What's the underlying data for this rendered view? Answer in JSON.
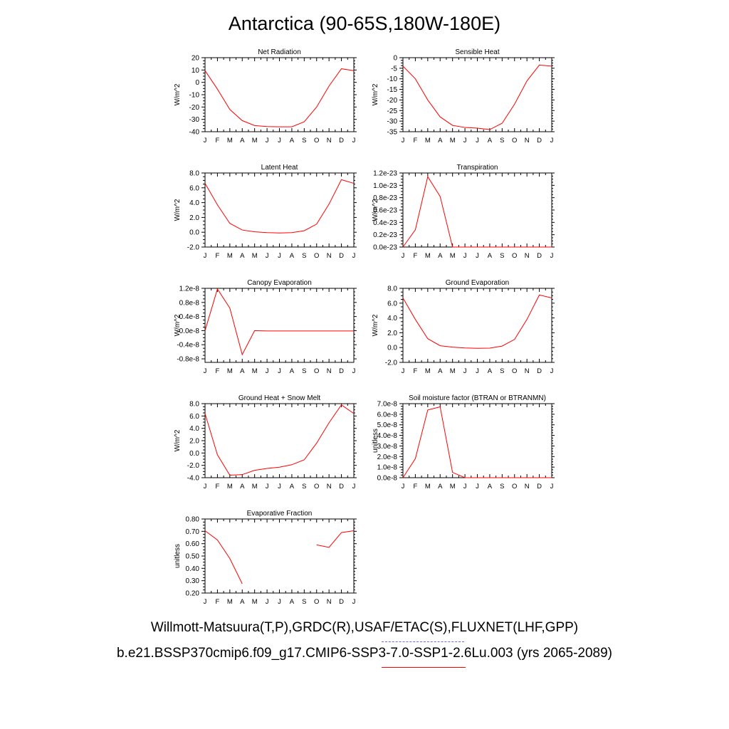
{
  "page": {
    "title": "Antarctica (90-65S,180W-180E)"
  },
  "legend": {
    "obs_label": "Willmott-Matsuura(T,P),GRDC(R),USAF/ETAC(S),FLUXNET(LHF,GPP)",
    "model_label": "b.e21.BSSP370cmip6.f09_g17.CMIP6-SSP3-7.0-SSP1-2.6Lu.003 (yrs 2065-2089)",
    "obs_color": "#6a6ae6",
    "model_color": "#ff0000"
  },
  "chart_data": [
    {
      "type": "line",
      "title": "Net Radiation",
      "ylabel": "W/m^2",
      "categories": [
        "J",
        "F",
        "M",
        "A",
        "M",
        "J",
        "J",
        "A",
        "S",
        "O",
        "N",
        "D",
        "J"
      ],
      "ylim": [
        -40,
        20
      ],
      "yticks": [
        20,
        10,
        0,
        -10,
        -20,
        -30,
        -40
      ],
      "ytick_labels": [
        "20",
        "10",
        "0",
        "-10",
        "-20",
        "-30",
        "-40"
      ],
      "series": [
        {
          "color": "#ff0000",
          "values": [
            9.5,
            -5.5,
            -22,
            -31,
            -35,
            -35.8,
            -36,
            -36,
            -32,
            -20,
            -3,
            11,
            9.5
          ]
        }
      ]
    },
    {
      "type": "line",
      "title": "Sensible Heat",
      "ylabel": "W/m^2",
      "categories": [
        "J",
        "F",
        "M",
        "A",
        "M",
        "J",
        "J",
        "A",
        "S",
        "O",
        "N",
        "D",
        "J"
      ],
      "ylim": [
        -35,
        0
      ],
      "yticks": [
        0,
        -5,
        -10,
        -15,
        -20,
        -25,
        -30,
        -35
      ],
      "ytick_labels": [
        "0",
        "-5",
        "-10",
        "-15",
        "-20",
        "-25",
        "-30",
        "-35"
      ],
      "series": [
        {
          "color": "#ff0000",
          "values": [
            -4,
            -10,
            -20,
            -28,
            -32,
            -33,
            -33.3,
            -34,
            -31,
            -22,
            -11,
            -3.5,
            -4
          ]
        }
      ]
    },
    {
      "type": "line",
      "title": "Latent Heat",
      "ylabel": "W/m^2",
      "categories": [
        "J",
        "F",
        "M",
        "A",
        "M",
        "J",
        "J",
        "A",
        "S",
        "O",
        "N",
        "D",
        "J"
      ],
      "ylim": [
        -2,
        8
      ],
      "yticks": [
        8,
        6,
        4,
        2,
        0,
        -2
      ],
      "ytick_labels": [
        "8.0",
        "6.0",
        "4.0",
        "2.0",
        "0.0",
        "-2.0"
      ],
      "series": [
        {
          "color": "#ff0000",
          "values": [
            6.6,
            3.7,
            1.2,
            0.3,
            0.05,
            -0.05,
            -0.1,
            -0.05,
            0.2,
            1.1,
            3.8,
            7.1,
            6.6
          ]
        }
      ]
    },
    {
      "type": "line",
      "title": "Transpiration",
      "ylabel": "W/m^2",
      "categories": [
        "J",
        "F",
        "M",
        "A",
        "M",
        "J",
        "J",
        "A",
        "S",
        "O",
        "N",
        "D",
        "J"
      ],
      "ylim": [
        0,
        1.2e-23
      ],
      "yticks": [
        1.2e-23,
        1e-23,
        8e-24,
        6e-24,
        4e-24,
        2e-24,
        0
      ],
      "ytick_labels": [
        "1.2e-23",
        "1.0e-23",
        "0.8e-23",
        "0.6e-23",
        "0.4e-23",
        "0.2e-23",
        "0.0e-23"
      ],
      "series": [
        {
          "color": "#ff0000",
          "values": [
            0,
            2.8e-24,
            1.14e-23,
            8.2e-24,
            0,
            0,
            0,
            0,
            0,
            0,
            0,
            0,
            0
          ]
        }
      ]
    },
    {
      "type": "line",
      "title": "Canopy Evaporation",
      "ylabel": "W/m^2",
      "categories": [
        "J",
        "F",
        "M",
        "A",
        "M",
        "J",
        "J",
        "A",
        "S",
        "O",
        "N",
        "D",
        "J"
      ],
      "ylim": [
        -9e-09,
        1.2e-08
      ],
      "yticks": [
        1.2e-08,
        8e-09,
        4e-09,
        0,
        -4e-09,
        -8e-09
      ],
      "ytick_labels": [
        "1.2e-8",
        "0.8e-8",
        "0.4e-8",
        "-0.0e-8",
        "-0.4e-8",
        "-0.8e-8"
      ],
      "series": [
        {
          "color": "#ff0000",
          "values": [
            0,
            1.18e-08,
            6.4e-09,
            -6.8e-09,
            0,
            -1e-10,
            -1e-10,
            -1e-10,
            -1e-10,
            -1e-10,
            -1e-10,
            -1e-10,
            -1e-10
          ]
        }
      ]
    },
    {
      "type": "line",
      "title": "Ground Evaporation",
      "ylabel": "W/m^2",
      "categories": [
        "J",
        "F",
        "M",
        "A",
        "M",
        "J",
        "J",
        "A",
        "S",
        "O",
        "N",
        "D",
        "J"
      ],
      "ylim": [
        -2,
        8
      ],
      "yticks": [
        8,
        6,
        4,
        2,
        0,
        -2
      ],
      "ytick_labels": [
        "8.0",
        "6.0",
        "4.0",
        "2.0",
        "0.0",
        "-2.0"
      ],
      "series": [
        {
          "color": "#ff0000",
          "values": [
            6.7,
            3.8,
            1.2,
            0.25,
            0.05,
            -0.05,
            -0.1,
            -0.08,
            0.2,
            1.1,
            3.8,
            7.1,
            6.7
          ]
        }
      ]
    },
    {
      "type": "line",
      "title": "Ground Heat + Snow Melt",
      "ylabel": "W/m^2",
      "categories": [
        "J",
        "F",
        "M",
        "A",
        "M",
        "J",
        "J",
        "A",
        "S",
        "O",
        "N",
        "D",
        "J"
      ],
      "ylim": [
        -4,
        8
      ],
      "yticks": [
        8,
        6,
        4,
        2,
        0,
        -2,
        -4
      ],
      "ytick_labels": [
        "8.0",
        "6.0",
        "4.0",
        "2.0",
        "0.0",
        "-2.0",
        "-4.0"
      ],
      "series": [
        {
          "color": "#ff0000",
          "values": [
            6.4,
            -0.3,
            -3.6,
            -3.5,
            -2.8,
            -2.5,
            -2.3,
            -1.9,
            -1.1,
            1.6,
            4.9,
            7.8,
            6.4
          ]
        }
      ]
    },
    {
      "type": "line",
      "title": "Soil moisture factor (BTRAN or BTRANMN)",
      "ylabel": "unitless",
      "categories": [
        "J",
        "F",
        "M",
        "A",
        "M",
        "J",
        "J",
        "A",
        "S",
        "O",
        "N",
        "D",
        "J"
      ],
      "ylim": [
        0,
        7e-08
      ],
      "yticks": [
        7e-08,
        6e-08,
        5e-08,
        4e-08,
        3e-08,
        2e-08,
        1e-08,
        0
      ],
      "ytick_labels": [
        "7.0e-8",
        "6.0e-8",
        "5.0e-8",
        "4.0e-8",
        "3.0e-8",
        "2.0e-8",
        "1.0e-8",
        "0.0e-8"
      ],
      "series": [
        {
          "color": "#ff0000",
          "values": [
            0,
            1.8e-08,
            6.4e-08,
            6.7e-08,
            5e-09,
            0,
            0,
            0,
            0,
            0,
            0,
            0,
            0
          ]
        }
      ]
    },
    {
      "type": "line",
      "title": "Evaporative Fraction",
      "ylabel": "unitless",
      "categories": [
        "J",
        "F",
        "M",
        "A",
        "M",
        "J",
        "J",
        "A",
        "S",
        "O",
        "N",
        "D",
        "J"
      ],
      "ylim": [
        0.2,
        0.8
      ],
      "yticks": [
        0.8,
        0.7,
        0.6,
        0.5,
        0.4,
        0.3,
        0.2
      ],
      "ytick_labels": [
        "0.80",
        "0.70",
        "0.60",
        "0.50",
        "0.40",
        "0.30",
        "0.20"
      ],
      "series": [
        {
          "color": "#ff0000",
          "values": [
            0.705,
            0.63,
            0.48,
            0.275,
            null,
            null,
            null,
            null,
            null,
            0.59,
            0.57,
            0.69,
            0.705
          ]
        }
      ]
    }
  ]
}
